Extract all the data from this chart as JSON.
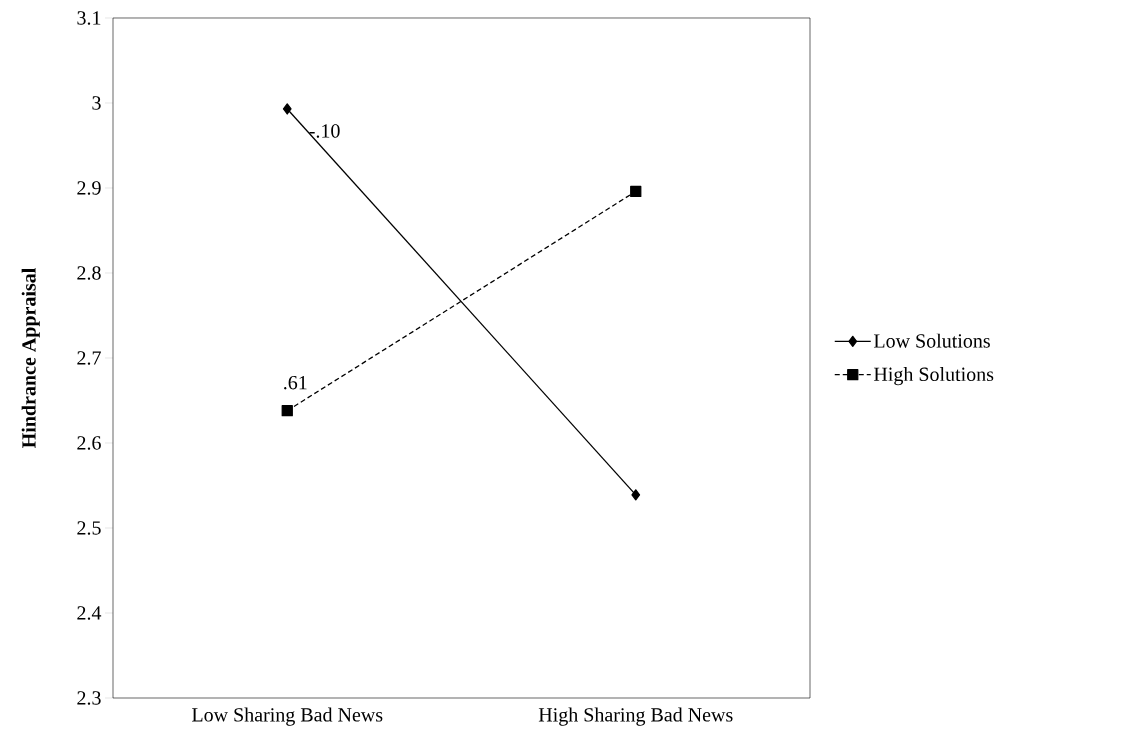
{
  "chart_data": {
    "type": "line",
    "ylabel": "Hindrance Appraisal",
    "categories": [
      "Low Sharing Bad News",
      "High Sharing Bad News"
    ],
    "series": [
      {
        "name": "Low Solutions",
        "color": "#000000",
        "values": [
          2.993,
          2.539
        ],
        "marker": "diamond",
        "line_style": "solid"
      },
      {
        "name": "High Solutions",
        "color": "#000000",
        "values": [
          2.638,
          2.896
        ],
        "marker": "square",
        "line_style": "dashed"
      }
    ],
    "ylim": [
      2.3,
      3.1
    ],
    "yticks": [
      2.3,
      2.4,
      2.5,
      2.6,
      2.7,
      2.8,
      2.9,
      3,
      3.1
    ],
    "annotations": [
      "-.10",
      ".61"
    ],
    "grid": false,
    "legend": "right"
  }
}
